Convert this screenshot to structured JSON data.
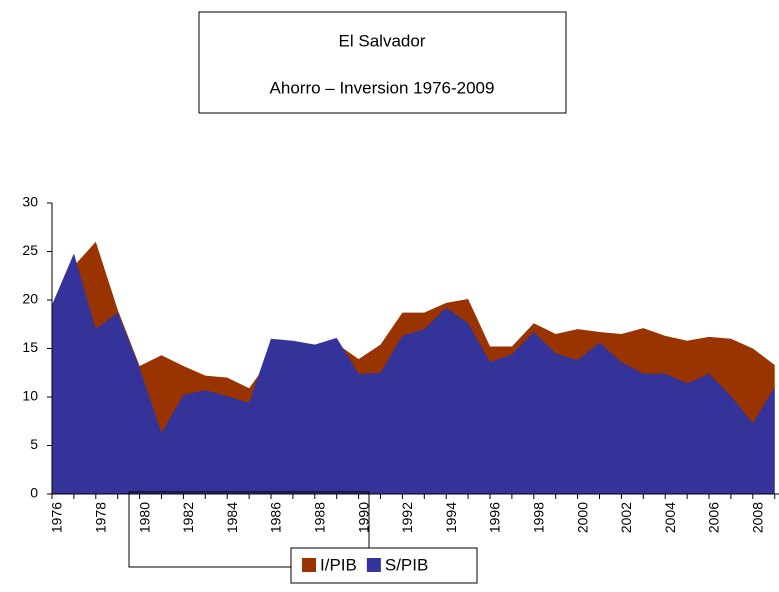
{
  "chart_data": {
    "type": "area",
    "title": "El Salvador",
    "subtitle": "Ahorro – Inversion 1976-2009",
    "categories": [
      "1976",
      null,
      "1978",
      null,
      "1980",
      null,
      "1982",
      null,
      "1984",
      null,
      "1986",
      null,
      "1988",
      null,
      "1990",
      null,
      "1992",
      null,
      "1994",
      null,
      "1996",
      null,
      "1998",
      null,
      "2000",
      null,
      "2002",
      null,
      "2004",
      null,
      "2006",
      null,
      "2008",
      null
    ],
    "series": [
      {
        "name": "I/PIB",
        "color": "#993300",
        "values": [
          19.5,
          23.5,
          26,
          19,
          13.2,
          14.3,
          13.2,
          12.2,
          12,
          10.9,
          14,
          15,
          15,
          15.5,
          13.9,
          15.4,
          18.7,
          18.7,
          19.7,
          20.1,
          15.2,
          15.2,
          17.6,
          16.5,
          17,
          16.7,
          16.5,
          17.1,
          16.3,
          15.8,
          16.2,
          16,
          15,
          13.3
        ]
      },
      {
        "name": "S/PIB",
        "color": "#333399",
        "values": [
          19.5,
          24.8,
          17,
          18.7,
          13,
          6.3,
          10.2,
          10.7,
          10.1,
          9.4,
          16,
          15.8,
          15.4,
          16.1,
          12.4,
          12.5,
          16.3,
          17,
          19.2,
          17.6,
          13.6,
          14.4,
          16.7,
          14.5,
          13.8,
          15.6,
          13.6,
          12.4,
          12.4,
          11.4,
          12.4,
          10.1,
          7.3,
          11
        ]
      }
    ],
    "ylim": [
      0,
      30
    ],
    "yticks": [
      0,
      5,
      10,
      15,
      20,
      25,
      30
    ]
  }
}
